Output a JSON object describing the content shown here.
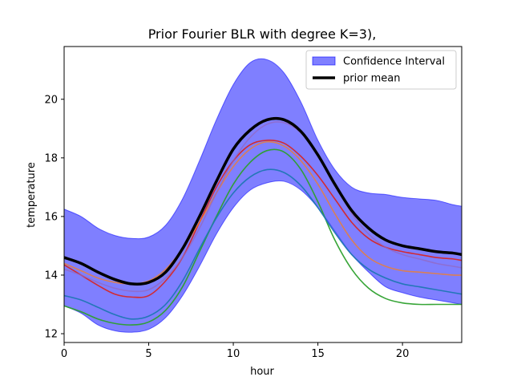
{
  "chart_data": {
    "type": "line",
    "title": "Prior Fourier BLR with degree K=3),",
    "xlabel": "hour",
    "ylabel": "temperature",
    "xlim": [
      0,
      23.5
    ],
    "ylim": [
      11.7,
      21.8
    ],
    "xticks": [
      0,
      5,
      10,
      15,
      20
    ],
    "yticks": [
      12,
      14,
      16,
      18,
      20
    ],
    "grid": false,
    "legend_position": "top-right",
    "legend": [
      {
        "label": "Confidence Interval",
        "kind": "patch",
        "color": "#0000ff"
      },
      {
        "label": "prior mean",
        "kind": "line",
        "color": "#000000"
      }
    ],
    "x": [
      0,
      1,
      2,
      3,
      4,
      5,
      6,
      7,
      8,
      9,
      10,
      11,
      12,
      13,
      14,
      15,
      16,
      17,
      18,
      19,
      20,
      21,
      22,
      23,
      23.5
    ],
    "confidence_interval": {
      "color": "#0000ff",
      "opacity": 0.5,
      "upper": [
        16.25,
        16.0,
        15.6,
        15.35,
        15.25,
        15.3,
        15.7,
        16.6,
        17.9,
        19.3,
        20.5,
        21.25,
        21.35,
        20.9,
        19.9,
        18.6,
        17.6,
        17.0,
        16.8,
        16.75,
        16.65,
        16.6,
        16.55,
        16.4,
        16.35
      ],
      "lower": [
        12.95,
        12.7,
        12.3,
        12.1,
        12.05,
        12.15,
        12.55,
        13.3,
        14.3,
        15.4,
        16.3,
        16.9,
        17.15,
        17.2,
        16.9,
        16.3,
        15.5,
        14.7,
        14.1,
        13.6,
        13.4,
        13.25,
        13.15,
        13.05,
        13.0
      ]
    },
    "series": [
      {
        "color": "#000000",
        "values": [
          14.6,
          14.4,
          14.1,
          13.85,
          13.7,
          13.75,
          14.1,
          14.9,
          16.0,
          17.2,
          18.3,
          18.95,
          19.3,
          19.3,
          18.9,
          18.1,
          17.1,
          16.2,
          15.6,
          15.2,
          15.0,
          14.9,
          14.8,
          14.75,
          14.7
        ]
      },
      {
        "color": "#d62728",
        "values": [
          14.35,
          14.0,
          13.65,
          13.35,
          13.25,
          13.3,
          13.8,
          14.6,
          15.8,
          17.0,
          17.9,
          18.45,
          18.6,
          18.5,
          18.05,
          17.4,
          16.6,
          15.8,
          15.25,
          14.95,
          14.8,
          14.7,
          14.6,
          14.55,
          14.5
        ]
      },
      {
        "color": "#ff7f0e",
        "values": [
          14.4,
          14.15,
          13.9,
          13.75,
          13.7,
          13.8,
          14.2,
          14.9,
          15.8,
          16.8,
          17.7,
          18.3,
          18.55,
          18.4,
          17.9,
          17.1,
          16.1,
          15.2,
          14.6,
          14.3,
          14.15,
          14.1,
          14.05,
          14.0,
          14.0
        ]
      },
      {
        "color": "#9467bd",
        "values": [
          14.2,
          14.0,
          13.75,
          13.55,
          13.45,
          13.5,
          13.9,
          14.6,
          15.6,
          16.8,
          17.9,
          18.7,
          19.15,
          19.2,
          18.85,
          18.1,
          17.1,
          16.1,
          15.4,
          14.95,
          14.7,
          14.55,
          14.4,
          14.3,
          14.25
        ]
      },
      {
        "color": "#2ca02c",
        "values": [
          12.95,
          12.75,
          12.5,
          12.35,
          12.3,
          12.4,
          12.8,
          13.6,
          14.8,
          16.0,
          17.1,
          17.85,
          18.25,
          18.2,
          17.6,
          16.5,
          15.2,
          14.2,
          13.55,
          13.2,
          13.05,
          13.0,
          13.0,
          13.0,
          13.0
        ]
      },
      {
        "color": "#1f77b4",
        "values": [
          13.3,
          13.15,
          12.9,
          12.65,
          12.5,
          12.6,
          13.0,
          13.8,
          14.9,
          15.95,
          16.8,
          17.35,
          17.6,
          17.5,
          17.05,
          16.3,
          15.45,
          14.7,
          14.2,
          13.9,
          13.7,
          13.6,
          13.5,
          13.4,
          13.35
        ]
      }
    ]
  }
}
